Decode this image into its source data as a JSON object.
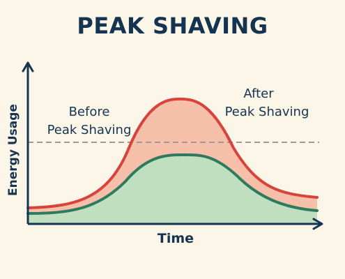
{
  "title": "PEAK SHAVING",
  "labels": {
    "before_line1": "Before",
    "before_line2": "Peak Shaving",
    "after_line1": "After",
    "after_line2": "Peak Shaving",
    "y_axis": "Energy Usage",
    "x_axis": "Time"
  },
  "colors": {
    "background": "#fbf6e8",
    "text": "#143451",
    "before_curve": "#d8433b",
    "before_fill": "#f5bfa9",
    "after_curve": "#2d7a5e",
    "after_fill": "#bfdfbf",
    "threshold_line": "#9a9a9a"
  }
}
